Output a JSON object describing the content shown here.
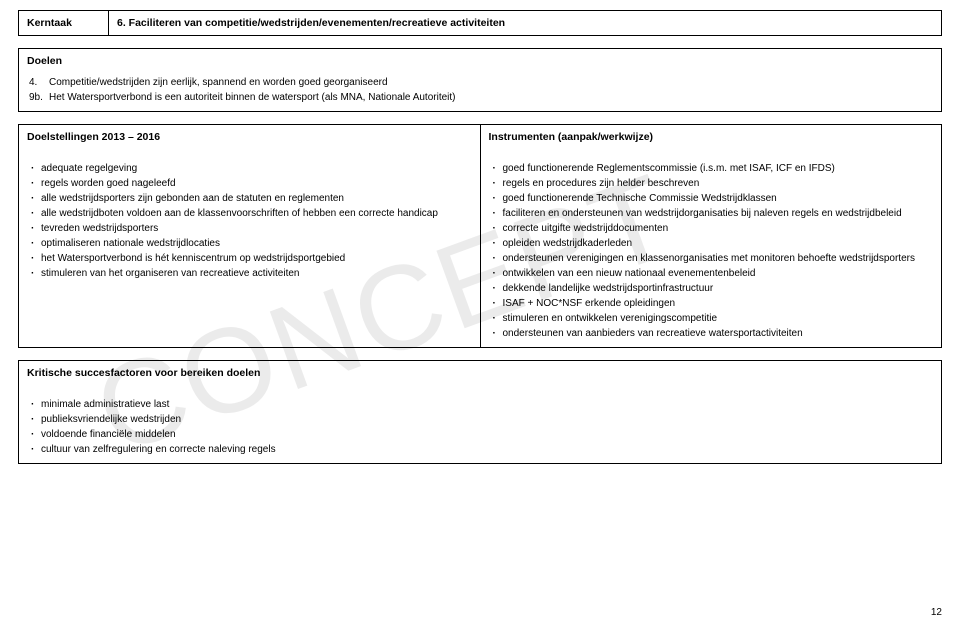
{
  "watermark": "CONCEPT",
  "header": {
    "left": "Kerntaak",
    "right": "6. Faciliteren van competitie/wedstrijden/evenementen/recreatieve activiteiten"
  },
  "doelen": {
    "title": "Doelen",
    "items": [
      {
        "num": "4.",
        "text": "Competitie/wedstrijden zijn eerlijk, spannend en worden goed georganiseerd"
      },
      {
        "num": "9b.",
        "text": "Het Watersportverbond is een autoriteit binnen de watersport (als MNA, Nationale Autoriteit)"
      }
    ]
  },
  "doelstellingen": {
    "left_title": "Doelstellingen 2013 – 2016",
    "right_title": "Instrumenten (aanpak/werkwijze)",
    "left_items": [
      "adequate regelgeving",
      "regels worden goed nageleefd",
      "alle wedstrijdsporters zijn gebonden aan de statuten en reglementen",
      "alle wedstrijdboten voldoen aan de klassenvoorschriften of hebben een correcte handicap",
      "tevreden wedstrijdsporters",
      "optimaliseren nationale wedstrijdlocaties",
      "het Watersportverbond is hét kenniscentrum op wedstrijdsportgebied",
      "stimuleren van het organiseren van recreatieve activiteiten"
    ],
    "right_items": [
      "goed functionerende Reglementscommissie (i.s.m. met ISAF, ICF en IFDS)",
      "regels en procedures zijn helder beschreven",
      "goed functionerende Technische Commissie Wedstrijdklassen",
      "faciliteren en ondersteunen van wedstrijdorganisaties bij naleven regels en wedstrijdbeleid",
      "correcte uitgifte wedstrijddocumenten",
      "opleiden wedstrijdkaderleden",
      "ondersteunen verenigingen en klassenorganisaties met monitoren behoefte wedstrijdsporters",
      "ontwikkelen van een nieuw nationaal evenementenbeleid",
      "dekkende landelijke wedstrijdsportinfrastructuur",
      "ISAF + NOC*NSF erkende opleidingen",
      "stimuleren en ontwikkelen verenigingscompetitie",
      "ondersteunen van aanbieders van recreatieve watersportactiviteiten"
    ]
  },
  "succesfactoren": {
    "title": "Kritische succesfactoren voor bereiken doelen",
    "items": [
      "minimale administratieve last",
      "publieksvriendelijke wedstrijden",
      "voldoende financiële middelen",
      "cultuur van zelfregulering en correcte naleving regels"
    ]
  },
  "page_number": "12"
}
